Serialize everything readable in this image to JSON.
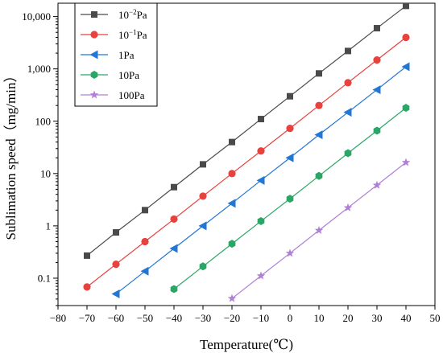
{
  "chart_data": {
    "type": "line",
    "title": "",
    "xlabel": "Temperature(℃)",
    "ylabel": "Sublimation speed（mg/min）",
    "yscale": "log",
    "xlim": [
      -80,
      50
    ],
    "ylim": [
      0.03,
      18000
    ],
    "grid": false,
    "legend_position": "top-left",
    "x_ticks": [
      -80,
      -70,
      -60,
      -50,
      -40,
      -30,
      -20,
      -10,
      0,
      10,
      20,
      30,
      40,
      50
    ],
    "y_ticks": [
      0.1,
      1,
      10,
      100,
      1000,
      10000
    ],
    "x_tick_labels": [
      "−80",
      "−70",
      "−60",
      "−50",
      "−40",
      "−30",
      "−20",
      "−10",
      "0",
      "10",
      "20",
      "30",
      "40",
      "50"
    ],
    "y_tick_labels": [
      "0.1",
      "1",
      "10",
      "100",
      "1,000",
      "10,000"
    ],
    "series": [
      {
        "name_base": "10",
        "name_sup": "−2",
        "name_unit": "Pa",
        "color": "#4a4a4a",
        "marker": "square",
        "x": [
          -70,
          -60,
          -50,
          -40,
          -30,
          -20,
          -10,
          0,
          10,
          20,
          30,
          40
        ],
        "y": [
          0.27,
          0.75,
          2.0,
          5.5,
          15,
          40,
          110,
          300,
          820,
          2200,
          6000,
          16000
        ]
      },
      {
        "name_base": "10",
        "name_sup": "−1",
        "name_unit": "Pa",
        "color": "#e8413e",
        "marker": "circle",
        "x": [
          -70,
          -60,
          -50,
          -40,
          -30,
          -20,
          -10,
          0,
          10,
          20,
          30,
          40
        ],
        "y": [
          0.068,
          0.185,
          0.5,
          1.35,
          3.7,
          10,
          27,
          73,
          200,
          545,
          1480,
          4000
        ]
      },
      {
        "name_base": "1Pa",
        "name_sup": "",
        "name_unit": "",
        "color": "#2277d4",
        "marker": "triangle-left",
        "x": [
          -60,
          -50,
          -40,
          -30,
          -20,
          -10,
          0,
          10,
          20,
          30,
          40
        ],
        "y": [
          0.05,
          0.136,
          0.37,
          1.0,
          2.7,
          7.4,
          20,
          55,
          148,
          400,
          1100
        ]
      },
      {
        "name_base": "10Pa",
        "name_sup": "",
        "name_unit": "",
        "color": "#2aa766",
        "marker": "hexagon",
        "x": [
          -40,
          -30,
          -20,
          -10,
          0,
          10,
          20,
          30,
          40
        ],
        "y": [
          0.062,
          0.168,
          0.455,
          1.23,
          3.3,
          9.0,
          24.5,
          66,
          180
        ]
      },
      {
        "name_base": "100Pa",
        "name_sup": "",
        "name_unit": "",
        "color": "#b07fd6",
        "marker": "star",
        "x": [
          -20,
          -10,
          0,
          10,
          20,
          30,
          40
        ],
        "y": [
          0.041,
          0.111,
          0.3,
          0.82,
          2.22,
          6.0,
          16.3
        ]
      }
    ]
  }
}
